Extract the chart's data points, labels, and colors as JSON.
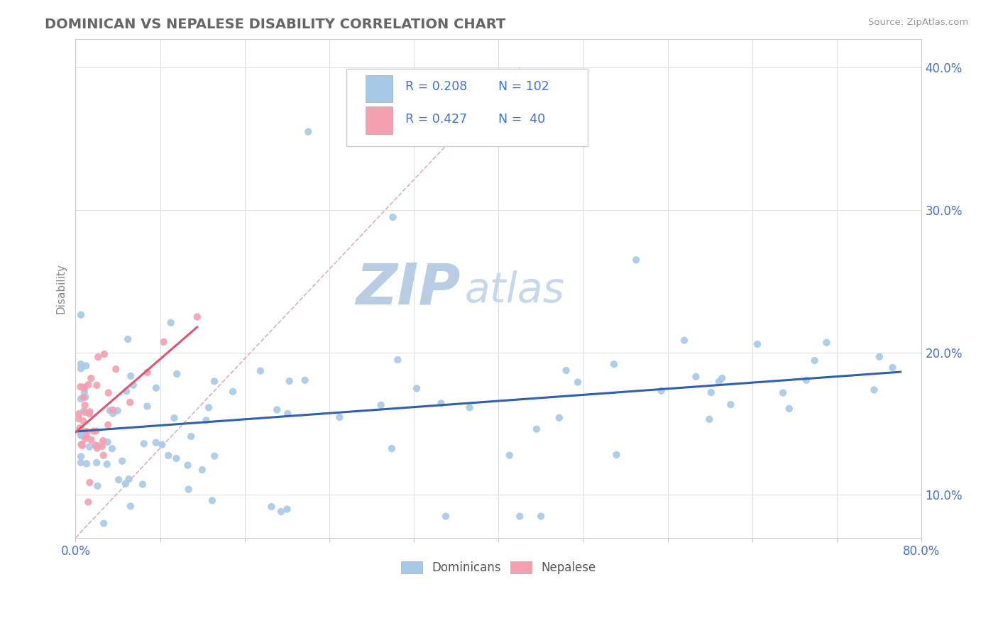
{
  "title": "DOMINICAN VS NEPALESE DISABILITY CORRELATION CHART",
  "source": "Source: ZipAtlas.com",
  "ylabel": "Disability",
  "xlim": [
    0.0,
    0.8
  ],
  "ylim": [
    0.07,
    0.42
  ],
  "yticks": [
    0.1,
    0.2,
    0.3,
    0.4
  ],
  "ytick_labels": [
    "10.0%",
    "20.0%",
    "30.0%",
    "40.0%"
  ],
  "xtick_vals": [
    0.0,
    0.08,
    0.16,
    0.24,
    0.32,
    0.4,
    0.48,
    0.56,
    0.64,
    0.72,
    0.8
  ],
  "legend_R1": "R = 0.208",
  "legend_N1": "N = 102",
  "legend_R2": "R = 0.427",
  "legend_N2": "N =  40",
  "legend_label1": "Dominicans",
  "legend_label2": "Nepalese",
  "color_dominican": "#a8c8e8",
  "color_nepalese": "#f4a0b0",
  "color_line_dominican": "#3060b0",
  "color_line_nepalese": "#e05570",
  "color_refline": "#d0a0a8",
  "color_text_blue": "#4472c4",
  "color_title": "#666666",
  "color_source": "#999999",
  "color_ylabel": "#888888",
  "watermark_zip_color": "#b8cce4",
  "watermark_atlas_color": "#c8d8ec",
  "background": "#ffffff",
  "grid_color": "#e0e0e0"
}
